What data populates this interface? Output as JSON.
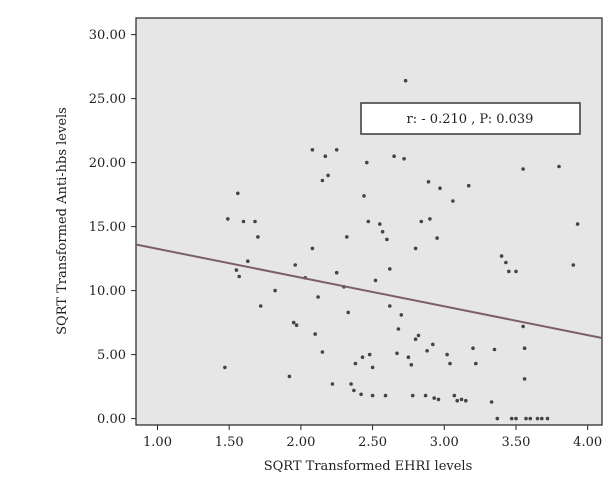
{
  "chart_data": {
    "type": "scatter",
    "title": "",
    "xlabel": "SQRT Transformed EHRI levels",
    "ylabel": "SQRT Transformed Anti-hbs levels",
    "xlim": [
      0.85,
      4.1
    ],
    "ylim": [
      -0.5,
      31.3
    ],
    "x_ticks": [
      1.0,
      1.5,
      2.0,
      2.5,
      3.0,
      3.5,
      4.0
    ],
    "x_tick_labels": [
      "1.00",
      "1.50",
      "2.00",
      "2.50",
      "3.00",
      "3.50",
      "4.00"
    ],
    "y_ticks": [
      0.0,
      5.0,
      10.0,
      15.0,
      20.0,
      25.0,
      30.0
    ],
    "y_tick_labels": [
      "0.00",
      "5.00",
      "10.00",
      "15.00",
      "20.00",
      "25.00",
      "30.00"
    ],
    "grid": false,
    "annotation": "r: - 0.210 , P: 0.039",
    "regression_line": {
      "x": [
        0.85,
        4.1
      ],
      "y": [
        13.6,
        6.3
      ]
    },
    "colors": {
      "plot_background": "#e6e6e6",
      "points": "#444444",
      "line": "#7a6068",
      "frame": "#222222"
    },
    "points": [
      {
        "x": 1.47,
        "y": 4.0
      },
      {
        "x": 1.49,
        "y": 15.6
      },
      {
        "x": 1.55,
        "y": 11.6
      },
      {
        "x": 1.56,
        "y": 17.6
      },
      {
        "x": 1.57,
        "y": 11.1
      },
      {
        "x": 1.6,
        "y": 15.4
      },
      {
        "x": 1.63,
        "y": 12.3
      },
      {
        "x": 1.68,
        "y": 15.4
      },
      {
        "x": 1.7,
        "y": 14.2
      },
      {
        "x": 1.72,
        "y": 8.8
      },
      {
        "x": 1.82,
        "y": 10.0
      },
      {
        "x": 1.92,
        "y": 3.3
      },
      {
        "x": 1.95,
        "y": 7.5
      },
      {
        "x": 1.96,
        "y": 12.0
      },
      {
        "x": 1.97,
        "y": 7.3
      },
      {
        "x": 2.03,
        "y": 11.0
      },
      {
        "x": 2.08,
        "y": 13.3
      },
      {
        "x": 2.08,
        "y": 21.0
      },
      {
        "x": 2.1,
        "y": 6.6
      },
      {
        "x": 2.12,
        "y": 9.5
      },
      {
        "x": 2.15,
        "y": 5.2
      },
      {
        "x": 2.15,
        "y": 18.6
      },
      {
        "x": 2.17,
        "y": 20.5
      },
      {
        "x": 2.19,
        "y": 19.0
      },
      {
        "x": 2.22,
        "y": 2.7
      },
      {
        "x": 2.25,
        "y": 11.4
      },
      {
        "x": 2.25,
        "y": 21.0
      },
      {
        "x": 2.3,
        "y": 10.3
      },
      {
        "x": 2.32,
        "y": 14.2
      },
      {
        "x": 2.33,
        "y": 8.3
      },
      {
        "x": 2.35,
        "y": 2.7
      },
      {
        "x": 2.37,
        "y": 2.2
      },
      {
        "x": 2.38,
        "y": 4.3
      },
      {
        "x": 2.42,
        "y": 1.9
      },
      {
        "x": 2.43,
        "y": 4.8
      },
      {
        "x": 2.44,
        "y": 17.4
      },
      {
        "x": 2.46,
        "y": 20.0
      },
      {
        "x": 2.47,
        "y": 15.4
      },
      {
        "x": 2.48,
        "y": 5.0
      },
      {
        "x": 2.5,
        "y": 4.0
      },
      {
        "x": 2.5,
        "y": 1.8
      },
      {
        "x": 2.52,
        "y": 10.8
      },
      {
        "x": 2.55,
        "y": 15.2
      },
      {
        "x": 2.57,
        "y": 14.6
      },
      {
        "x": 2.59,
        "y": 1.8
      },
      {
        "x": 2.6,
        "y": 14.0
      },
      {
        "x": 2.62,
        "y": 8.8
      },
      {
        "x": 2.62,
        "y": 11.7
      },
      {
        "x": 2.65,
        "y": 20.5
      },
      {
        "x": 2.67,
        "y": 5.1
      },
      {
        "x": 2.68,
        "y": 7.0
      },
      {
        "x": 2.7,
        "y": 8.1
      },
      {
        "x": 2.72,
        "y": 20.3
      },
      {
        "x": 2.73,
        "y": 26.4
      },
      {
        "x": 2.75,
        "y": 4.8
      },
      {
        "x": 2.77,
        "y": 4.2
      },
      {
        "x": 2.78,
        "y": 1.8
      },
      {
        "x": 2.8,
        "y": 13.3
      },
      {
        "x": 2.8,
        "y": 6.2
      },
      {
        "x": 2.82,
        "y": 6.5
      },
      {
        "x": 2.84,
        "y": 15.4
      },
      {
        "x": 2.87,
        "y": 1.8
      },
      {
        "x": 2.88,
        "y": 5.3
      },
      {
        "x": 2.89,
        "y": 18.5
      },
      {
        "x": 2.9,
        "y": 15.6
      },
      {
        "x": 2.92,
        "y": 5.8
      },
      {
        "x": 2.93,
        "y": 1.6
      },
      {
        "x": 2.95,
        "y": 14.1
      },
      {
        "x": 2.96,
        "y": 1.5
      },
      {
        "x": 2.97,
        "y": 18.0
      },
      {
        "x": 3.02,
        "y": 5.0
      },
      {
        "x": 3.04,
        "y": 4.3
      },
      {
        "x": 3.06,
        "y": 17.0
      },
      {
        "x": 3.07,
        "y": 1.8
      },
      {
        "x": 3.09,
        "y": 1.4
      },
      {
        "x": 3.12,
        "y": 1.5
      },
      {
        "x": 3.15,
        "y": 1.4
      },
      {
        "x": 3.17,
        "y": 18.2
      },
      {
        "x": 3.2,
        "y": 5.5
      },
      {
        "x": 3.22,
        "y": 4.3
      },
      {
        "x": 3.33,
        "y": 1.3
      },
      {
        "x": 3.35,
        "y": 5.4
      },
      {
        "x": 3.37,
        "y": 0.0
      },
      {
        "x": 3.4,
        "y": 12.7
      },
      {
        "x": 3.43,
        "y": 12.2
      },
      {
        "x": 3.45,
        "y": 11.5
      },
      {
        "x": 3.47,
        "y": 0.0
      },
      {
        "x": 3.5,
        "y": 11.5
      },
      {
        "x": 3.5,
        "y": 0.0
      },
      {
        "x": 3.55,
        "y": 19.5
      },
      {
        "x": 3.55,
        "y": 7.2
      },
      {
        "x": 3.56,
        "y": 5.5
      },
      {
        "x": 3.56,
        "y": 3.1
      },
      {
        "x": 3.57,
        "y": 0.0
      },
      {
        "x": 3.6,
        "y": 0.0
      },
      {
        "x": 3.65,
        "y": 0.0
      },
      {
        "x": 3.68,
        "y": 0.0
      },
      {
        "x": 3.72,
        "y": 0.0
      },
      {
        "x": 3.8,
        "y": 19.7
      },
      {
        "x": 3.9,
        "y": 12.0
      },
      {
        "x": 3.93,
        "y": 15.2
      }
    ]
  }
}
